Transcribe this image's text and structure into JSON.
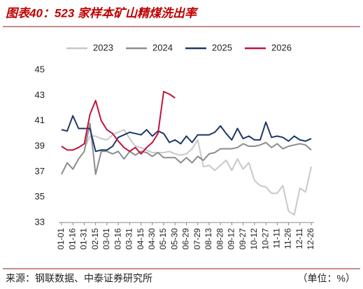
{
  "chart_data": {
    "type": "line",
    "title": "图表40：523 家样本矿山精煤洗出率",
    "source": "来源：钢联数据、中泰证券研究所",
    "unit": "（单位：%）",
    "categories": [
      "01-01",
      null,
      "01-16",
      null,
      "01-31",
      null,
      "02-15",
      null,
      "03-01",
      null,
      "03-16",
      null,
      "03-31",
      null,
      "04-15",
      null,
      "04-30",
      null,
      "05-15",
      null,
      "05-30",
      null,
      "06-29",
      null,
      "07-29",
      null,
      "08-13",
      null,
      "08-28",
      null,
      "09-12",
      null,
      "09-27",
      null,
      "10-12",
      null,
      "10-27",
      null,
      "11-11",
      null,
      "11-26",
      null,
      "12-11",
      null,
      "12-26"
    ],
    "ylim": [
      33,
      45
    ],
    "yticks": [
      33,
      35,
      37,
      39,
      41,
      43,
      45
    ],
    "series": [
      {
        "name": "2023",
        "color": "#c8c8c8",
        "values": [
          null,
          null,
          null,
          null,
          38.8,
          39.8,
          39.8,
          39.6,
          39.5,
          39.9,
          40.1,
          40.3,
          39.6,
          39.0,
          38.9,
          38.7,
          38.5,
          38.5,
          38.5,
          38.6,
          38.4,
          38.3,
          38.4,
          38.8,
          39.5,
          37.4,
          37.5,
          37.1,
          37.5,
          37.9,
          37.1,
          38.0,
          37.2,
          37.7,
          36.3,
          35.9,
          35.8,
          35.3,
          35.3,
          35.9,
          33.9,
          33.6,
          35.7,
          35.4,
          37.4
        ]
      },
      {
        "name": "2024",
        "color": "#8c8c8c",
        "values": [
          36.8,
          37.7,
          37.2,
          38.0,
          38.6,
          40.8,
          36.8,
          38.6,
          38.6,
          38.4,
          38.6,
          38.0,
          38.6,
          38.3,
          38.6,
          38.5,
          38.2,
          38.5,
          38.1,
          38.1,
          38.1,
          37.7,
          38.1,
          37.7,
          38.2,
          37.9,
          38.4,
          38.5,
          38.8,
          38.8,
          38.8,
          38.9,
          39.2,
          39.0,
          39.0,
          39.1,
          39.3,
          38.9,
          39.2,
          38.8,
          39.0,
          39.1,
          39.2,
          39.1,
          38.7
        ]
      },
      {
        "name": "2025",
        "color": "#1f3864",
        "values": [
          40.3,
          40.2,
          41.4,
          40.4,
          40.4,
          40.4,
          38.6,
          38.7,
          38.7,
          39.0,
          39.7,
          39.9,
          40.1,
          40.0,
          39.9,
          40.3,
          39.8,
          40.2,
          40.0,
          39.3,
          39.5,
          39.2,
          39.8,
          39.3,
          39.9,
          39.9,
          39.9,
          40.1,
          40.6,
          40.0,
          39.5,
          40.4,
          39.6,
          39.8,
          39.5,
          39.5,
          40.9,
          39.7,
          39.8,
          39.7,
          39.4,
          39.8,
          39.5,
          39.4,
          39.6
        ]
      },
      {
        "name": "2026",
        "color": "#c0143c",
        "values": [
          39.0,
          38.7,
          38.7,
          38.9,
          39.2,
          41.5,
          42.6,
          41.0,
          40.3,
          40.0,
          39.4,
          38.9,
          38.6,
          38.9,
          38.4,
          38.9,
          39.3,
          40.0,
          43.3,
          43.1,
          42.8,
          null,
          null,
          null,
          null,
          null,
          null,
          null,
          null,
          null,
          null,
          null,
          null,
          null,
          null,
          null,
          null,
          null,
          null,
          null,
          null,
          null,
          null,
          null,
          null
        ]
      }
    ]
  }
}
